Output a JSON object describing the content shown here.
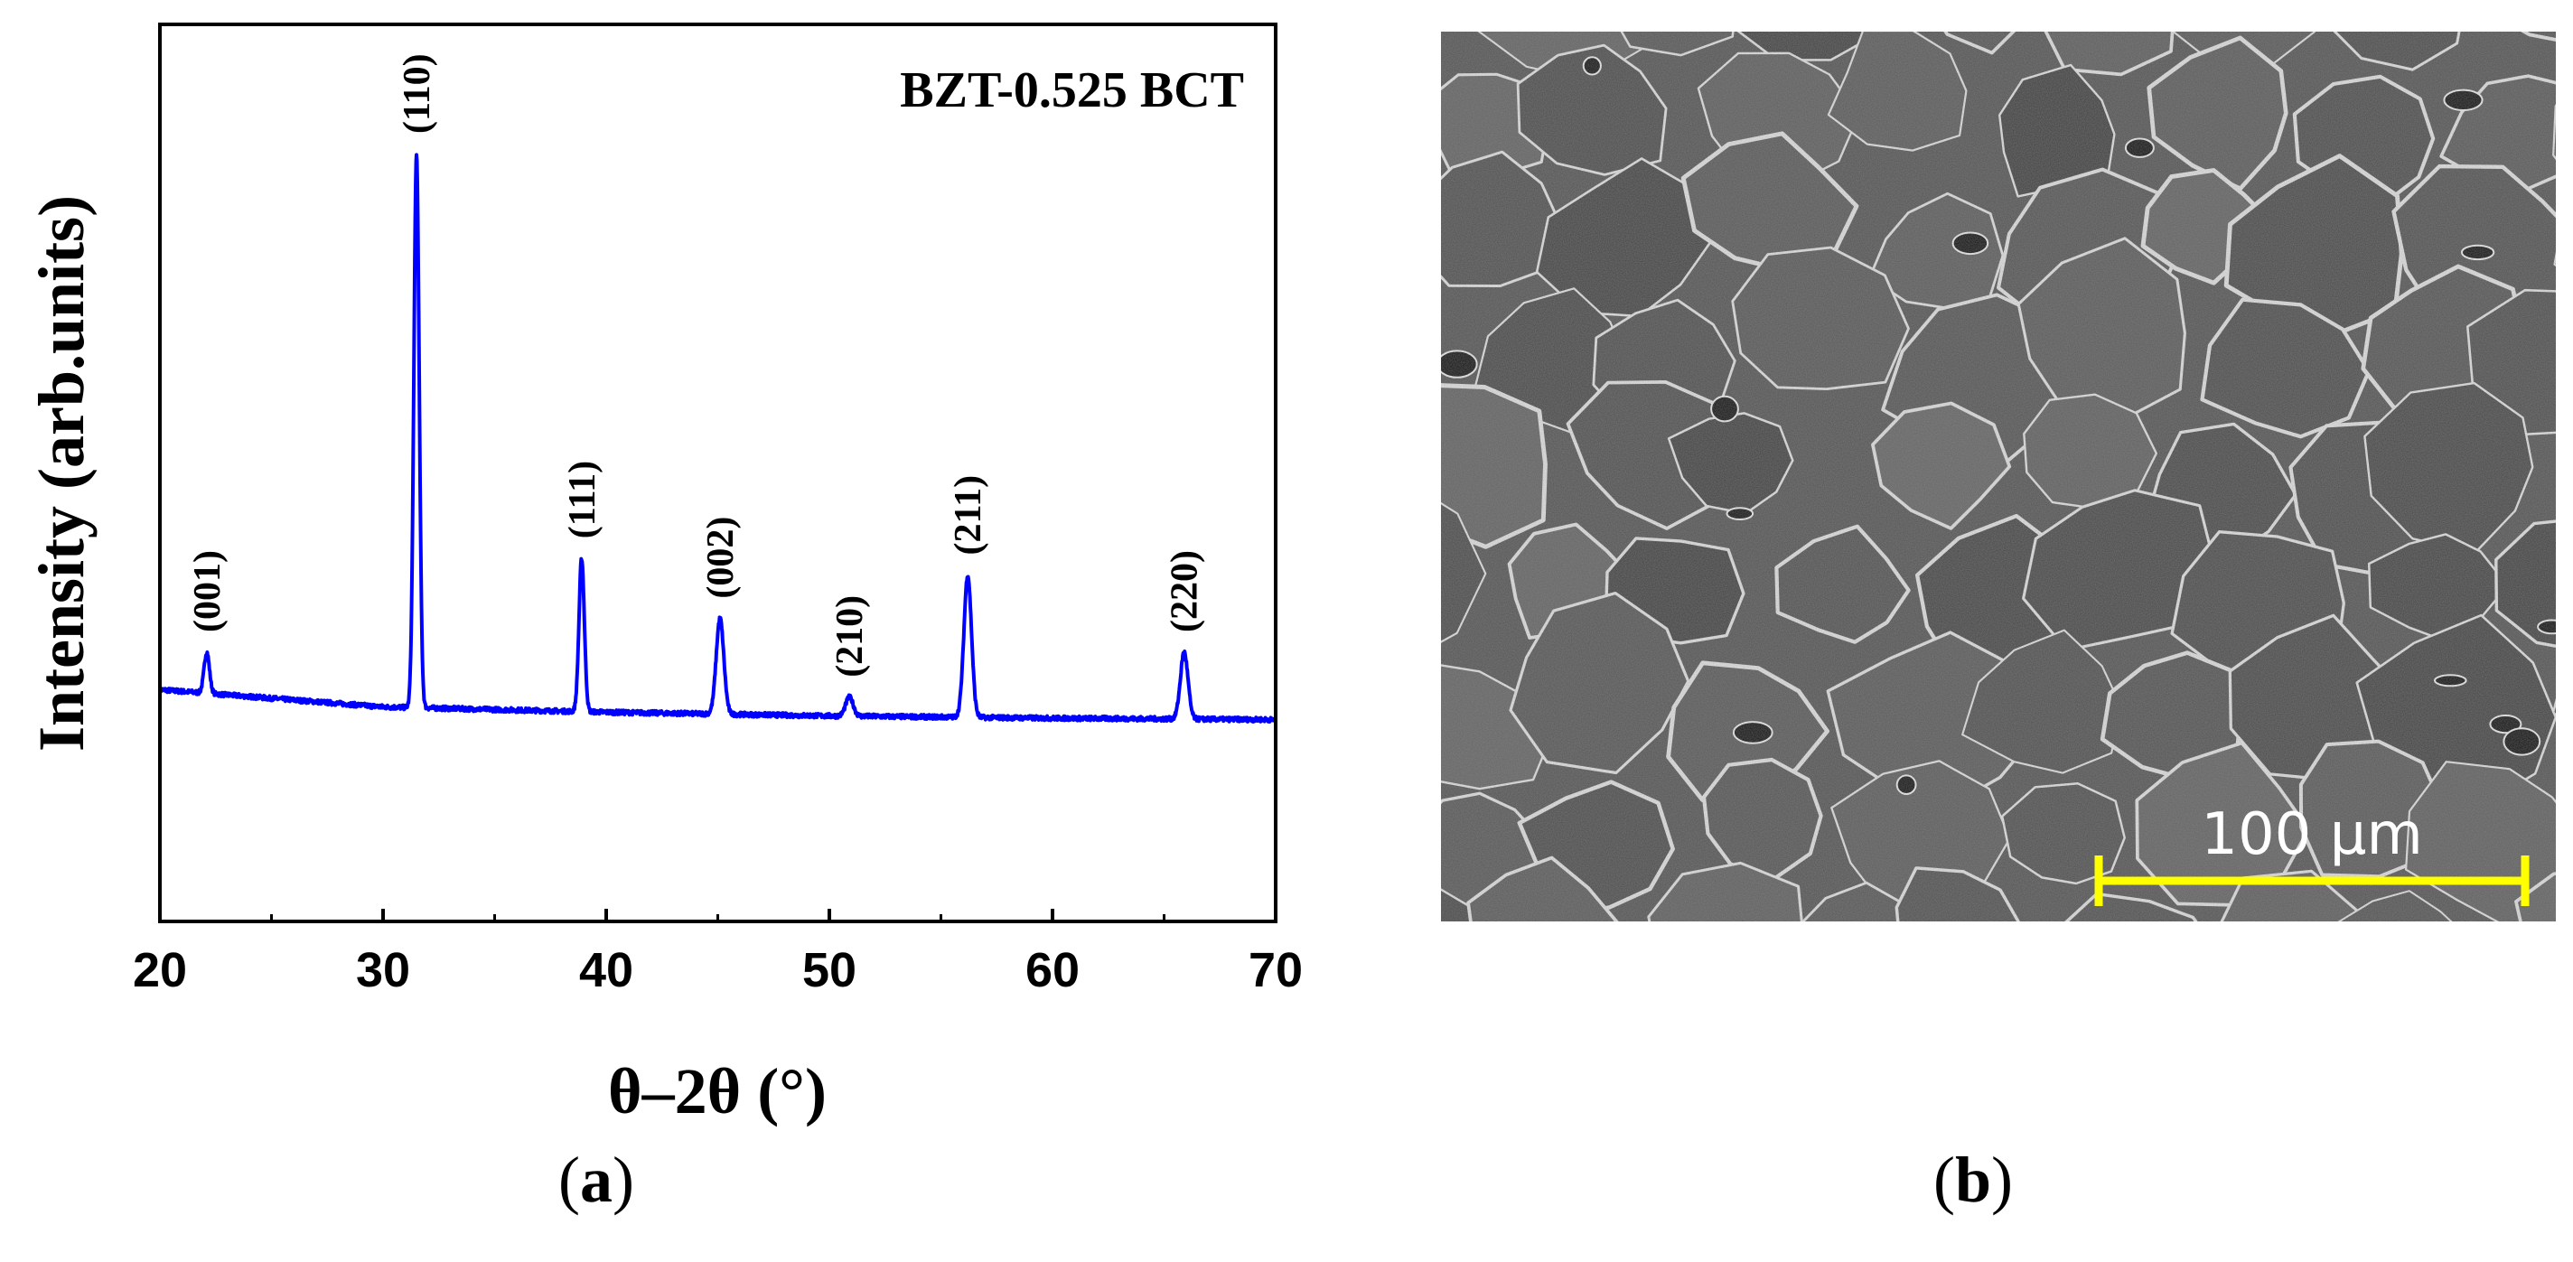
{
  "panel_a": {
    "label_open": "(",
    "label_letter": "a",
    "label_close": ")"
  },
  "panel_b": {
    "label_open": "(",
    "label_letter": "b",
    "label_close": ")",
    "scale_bar_label": "100 µm",
    "scale_bar_color": "#ffff00"
  },
  "chart_data": {
    "type": "line",
    "title": "",
    "annotation": "BZT-0.525 BCT",
    "xlabel": "θ–2θ (°)",
    "ylabel": "Intensity (arb.units)",
    "xlim": [
      20,
      70
    ],
    "xticks": [
      20,
      30,
      40,
      50,
      60,
      70
    ],
    "y_ticks_shown": false,
    "grid": false,
    "legend": "none",
    "line_color": "#0000ff",
    "baseline": [
      {
        "x": 20,
        "y": 0.285
      },
      {
        "x": 30,
        "y": 0.262
      },
      {
        "x": 40,
        "y": 0.255
      },
      {
        "x": 50,
        "y": 0.25
      },
      {
        "x": 60,
        "y": 0.247
      },
      {
        "x": 70,
        "y": 0.245
      }
    ],
    "peaks": [
      {
        "label": "(001)",
        "x": 22.1,
        "y": 0.335
      },
      {
        "label": "(110)",
        "x": 31.5,
        "y": 1.0
      },
      {
        "label": "(111)",
        "x": 38.9,
        "y": 0.46
      },
      {
        "label": "(002)",
        "x": 45.1,
        "y": 0.38
      },
      {
        "label": "(210)",
        "x": 50.9,
        "y": 0.275
      },
      {
        "label": "(211)",
        "x": 56.2,
        "y": 0.438
      },
      {
        "label": "(220)",
        "x": 65.9,
        "y": 0.335
      }
    ]
  }
}
